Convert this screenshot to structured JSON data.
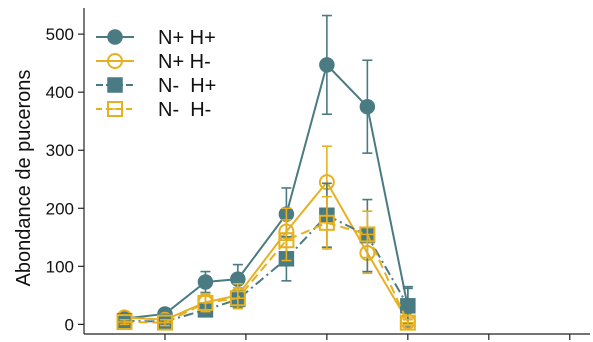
{
  "chart_data": {
    "type": "line",
    "title": "",
    "xlabel": "",
    "ylabel": "Abondance de pucerons",
    "ylim": [
      -20,
      545
    ],
    "xlim": [
      0,
      12.5
    ],
    "yticks": [
      0,
      100,
      200,
      300,
      400,
      500
    ],
    "xticks": [
      2,
      4,
      6,
      8,
      10,
      12
    ],
    "grid": false,
    "legend_position": "top-left",
    "x": [
      1,
      2,
      3,
      3.8,
      5,
      6,
      7,
      8
    ],
    "series": [
      {
        "name": "N+ H+",
        "color": "#4a7a82",
        "marker": "filled-circle",
        "line": "solid",
        "values": [
          10,
          18,
          73,
          78,
          190,
          447,
          375,
          30
        ],
        "errors": [
          5,
          6,
          18,
          25,
          45,
          85,
          80,
          35
        ]
      },
      {
        "name": "N+ H-",
        "color": "#e6b020",
        "marker": "open-circle",
        "line": "solid",
        "values": [
          12,
          8,
          38,
          50,
          160,
          245,
          123,
          5
        ],
        "errors": [
          4,
          6,
          15,
          20,
          40,
          62,
          35,
          6
        ]
      },
      {
        "name": "N-  H+",
        "color": "#4a7a82",
        "marker": "filled-square",
        "line": "dashdot",
        "values": [
          6,
          5,
          25,
          43,
          113,
          188,
          153,
          32
        ],
        "errors": [
          4,
          5,
          10,
          15,
          38,
          55,
          62,
          30
        ]
      },
      {
        "name": "N-  H-",
        "color": "#e6b020",
        "marker": "open-square",
        "line": "dashed",
        "values": [
          4,
          3,
          37,
          45,
          145,
          175,
          155,
          3
        ],
        "errors": [
          4,
          5,
          15,
          18,
          35,
          45,
          40,
          5
        ]
      }
    ]
  }
}
